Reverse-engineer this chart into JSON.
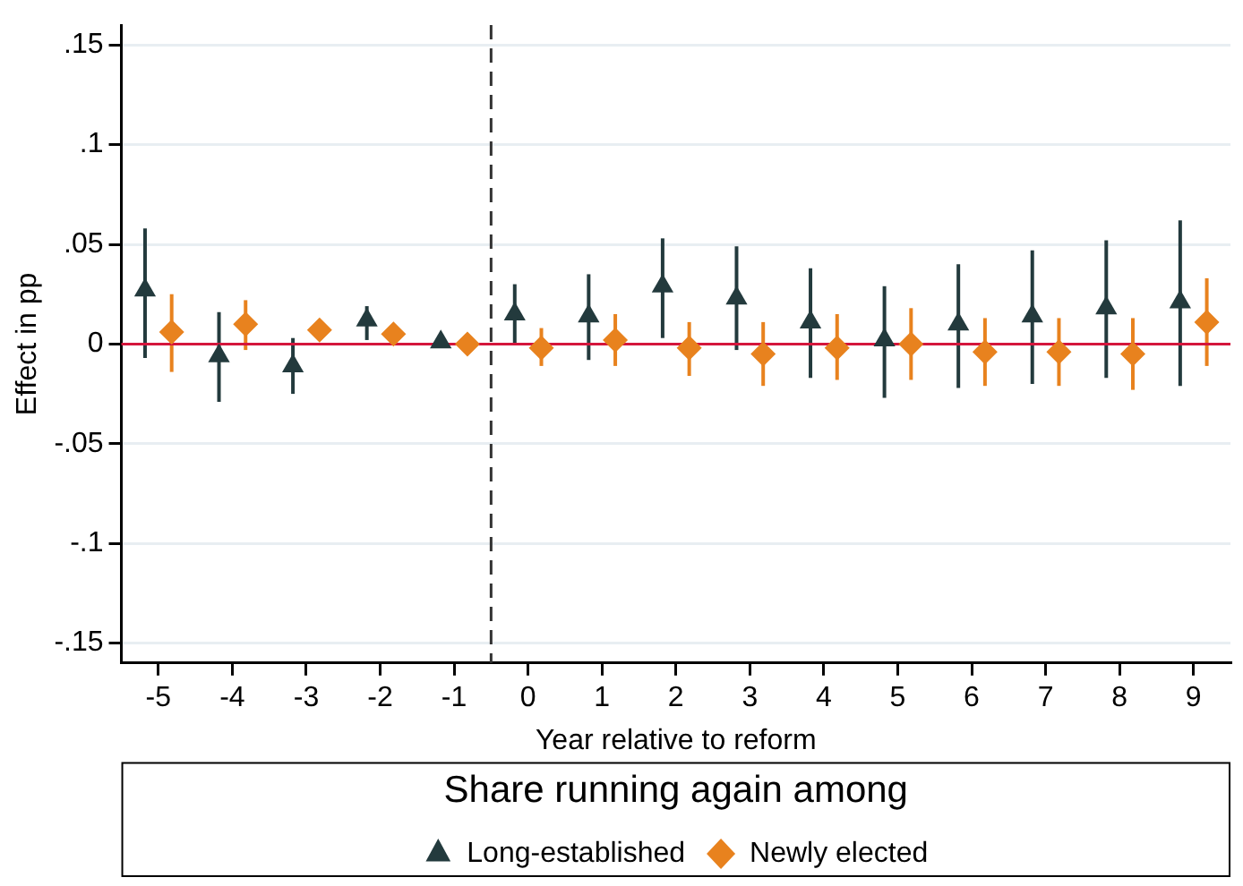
{
  "chart_data": {
    "type": "scatter",
    "xlabel": "Year relative to reform",
    "ylabel": "Effect in pp",
    "legend_title": "Share running again among",
    "xlim": [
      -5.5,
      9.5
    ],
    "xticks": [
      -5,
      -4,
      -3,
      -2,
      -1,
      0,
      1,
      2,
      3,
      4,
      5,
      6,
      7,
      8,
      9
    ],
    "ylim": [
      -0.16,
      0.16
    ],
    "yticks": [
      {
        "value": -0.15,
        "label": "-.15"
      },
      {
        "value": -0.1,
        "label": "-.1"
      },
      {
        "value": -0.05,
        "label": "-.05"
      },
      0,
      {
        "value": 0.05,
        "label": ".05"
      },
      {
        "value": 0.1,
        "label": ".1"
      },
      {
        "value": 0.15,
        "label": ".15"
      }
    ],
    "grid": "y",
    "legend": "bottom",
    "ref_lines": [
      {
        "axis": "y",
        "value": 0,
        "color": "#d4163c",
        "line_style": "solid"
      },
      {
        "axis": "x",
        "value": -0.5,
        "color": "#333333",
        "line_style": "dashed"
      }
    ],
    "series": [
      {
        "name": "Long-established",
        "color": "#233a3d",
        "marker": "triangle",
        "x": [
          -5.18,
          -4.18,
          -3.18,
          -2.18,
          -1.18,
          -0.18,
          0.82,
          1.82,
          2.82,
          3.82,
          4.82,
          5.82,
          6.82,
          7.82,
          8.82
        ],
        "values": [
          0.027,
          -0.006,
          -0.011,
          0.012,
          0.001,
          0.015,
          0.014,
          0.029,
          0.023,
          0.011,
          0.002,
          0.01,
          0.014,
          0.018,
          0.021
        ],
        "errors": [
          [
            -0.007,
            0.058
          ],
          [
            -0.029,
            0.016
          ],
          [
            -0.025,
            0.003
          ],
          [
            0.002,
            0.019
          ],
          null,
          [
            0,
            0.03
          ],
          [
            -0.008,
            0.035
          ],
          [
            0.003,
            0.053
          ],
          [
            -0.003,
            0.049
          ],
          [
            -0.017,
            0.038
          ],
          [
            -0.027,
            0.029
          ],
          [
            -0.022,
            0.04
          ],
          [
            -0.02,
            0.047
          ],
          [
            -0.017,
            0.052
          ],
          [
            -0.021,
            0.062
          ]
        ]
      },
      {
        "name": "Newly elected",
        "color": "#e8821e",
        "marker": "diamond",
        "x": [
          -4.82,
          -3.82,
          -2.82,
          -1.82,
          -0.82,
          0.18,
          1.18,
          2.18,
          3.18,
          4.18,
          5.18,
          6.18,
          7.18,
          8.18,
          9.18
        ],
        "values": [
          0.006,
          0.01,
          0.007,
          0.005,
          0,
          -0.002,
          0.002,
          -0.002,
          -0.005,
          -0.002,
          0,
          -0.004,
          -0.004,
          -0.005,
          0.011
        ],
        "errors": [
          [
            -0.014,
            0.025
          ],
          [
            -0.003,
            0.022
          ],
          null,
          null,
          null,
          [
            -0.011,
            0.008
          ],
          [
            -0.011,
            0.015
          ],
          [
            -0.016,
            0.011
          ],
          [
            -0.021,
            0.011
          ],
          [
            -0.018,
            0.015
          ],
          [
            -0.018,
            0.018
          ],
          [
            -0.021,
            0.013
          ],
          [
            -0.021,
            0.013
          ],
          [
            -0.023,
            0.013
          ],
          [
            -0.011,
            0.033
          ]
        ]
      }
    ]
  }
}
